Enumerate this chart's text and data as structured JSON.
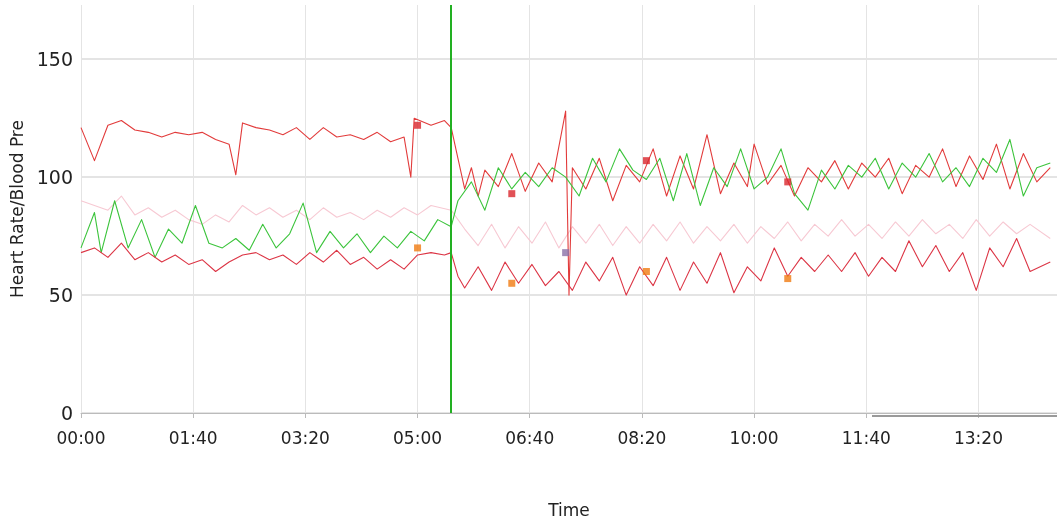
{
  "chart_data": {
    "type": "line",
    "xlabel": "Time",
    "ylabel": "Heart Rate/Blood Pre",
    "xlim": [
      0,
      14.5
    ],
    "ylim": [
      0,
      173
    ],
    "xticks": [
      {
        "value": 0,
        "label": "00:00"
      },
      {
        "value": 1.6667,
        "label": "01:40"
      },
      {
        "value": 3.3333,
        "label": "03:20"
      },
      {
        "value": 5,
        "label": "05:00"
      },
      {
        "value": 6.6667,
        "label": "06:40"
      },
      {
        "value": 8.3333,
        "label": "08:20"
      },
      {
        "value": 10,
        "label": "10:00"
      },
      {
        "value": 11.6667,
        "label": "11:40"
      },
      {
        "value": 13.3333,
        "label": "13:20"
      }
    ],
    "yticks": [
      0,
      50,
      100,
      150
    ],
    "grid": true,
    "marker": "none",
    "line_style": "solid",
    "ref_lines": [
      {
        "axis": "x",
        "value": 5.5,
        "label": null,
        "color": "#22b022"
      }
    ],
    "series": [
      {
        "color": "#f7c9d3",
        "x": [
          0,
          0.4,
          0.6,
          0.8,
          1.0,
          1.2,
          1.4,
          1.6,
          1.8,
          2.0,
          2.2,
          2.4,
          2.6,
          2.8,
          3.0,
          3.2,
          3.4,
          3.6,
          3.8,
          4.0,
          4.2,
          4.4,
          4.6,
          4.8,
          5.0,
          5.2,
          5.5,
          5.7,
          5.9,
          6.1,
          6.3,
          6.5,
          6.7,
          6.9,
          7.1,
          7.3,
          7.5,
          7.7,
          7.9,
          8.1,
          8.3,
          8.5,
          8.7,
          8.9,
          9.1,
          9.3,
          9.5,
          9.7,
          9.9,
          10.1,
          10.3,
          10.5,
          10.7,
          10.9,
          11.1,
          11.3,
          11.5,
          11.7,
          11.9,
          12.1,
          12.3,
          12.5,
          12.7,
          12.9,
          13.1,
          13.3,
          13.5,
          13.7,
          13.9,
          14.1,
          14.4
        ],
        "values": [
          90,
          86,
          92,
          84,
          87,
          83,
          86,
          82,
          80,
          84,
          81,
          88,
          84,
          87,
          83,
          86,
          82,
          87,
          83,
          85,
          82,
          86,
          83,
          87,
          84,
          88,
          86,
          78,
          71,
          80,
          70,
          79,
          72,
          81,
          70,
          79,
          72,
          80,
          71,
          79,
          72,
          80,
          73,
          81,
          72,
          79,
          73,
          80,
          72,
          79,
          74,
          81,
          73,
          80,
          75,
          82,
          75,
          80,
          74,
          81,
          75,
          82,
          76,
          80,
          74,
          82,
          75,
          81,
          76,
          80,
          74
        ]
      },
      {
        "color": "#e23b3b",
        "x": [
          0,
          0.2,
          0.4,
          0.6,
          0.8,
          1.0,
          1.2,
          1.4,
          1.6,
          1.8,
          2.0,
          2.2,
          2.3,
          2.4,
          2.6,
          2.8,
          3.0,
          3.2,
          3.4,
          3.6,
          3.8,
          4.0,
          4.2,
          4.4,
          4.6,
          4.8,
          4.9,
          4.95,
          5.2,
          5.4,
          5.5,
          5.6,
          5.7,
          5.8,
          5.9,
          6.0,
          6.2,
          6.4,
          6.6,
          6.8,
          7.0,
          7.2,
          7.25,
          7.3,
          7.5,
          7.7,
          7.9,
          8.1,
          8.3,
          8.5,
          8.7,
          8.9,
          9.1,
          9.3,
          9.5,
          9.7,
          9.9,
          10.0,
          10.2,
          10.4,
          10.6,
          10.8,
          11.0,
          11.2,
          11.4,
          11.6,
          11.8,
          12.0,
          12.2,
          12.4,
          12.6,
          12.8,
          13.0,
          13.2,
          13.4,
          13.6,
          13.8,
          14.0,
          14.2,
          14.4
        ],
        "values": [
          121,
          107,
          122,
          124,
          120,
          119,
          117,
          119,
          118,
          119,
          116,
          114,
          101,
          123,
          121,
          120,
          118,
          121,
          116,
          121,
          117,
          118,
          116,
          119,
          115,
          117,
          100,
          125,
          122,
          124,
          121,
          108,
          95,
          104,
          92,
          103,
          96,
          110,
          94,
          106,
          98,
          128,
          50,
          104,
          95,
          108,
          90,
          105,
          98,
          112,
          92,
          109,
          95,
          118,
          93,
          106,
          96,
          114,
          97,
          105,
          92,
          104,
          98,
          107,
          95,
          106,
          100,
          108,
          93,
          105,
          100,
          112,
          96,
          109,
          99,
          114,
          95,
          110,
          98,
          104
        ]
      },
      {
        "color": "#3cc43c",
        "x": [
          0,
          0.2,
          0.3,
          0.5,
          0.7,
          0.9,
          1.1,
          1.3,
          1.5,
          1.7,
          1.9,
          2.1,
          2.3,
          2.5,
          2.7,
          2.9,
          3.1,
          3.3,
          3.5,
          3.7,
          3.9,
          4.1,
          4.3,
          4.5,
          4.7,
          4.9,
          5.1,
          5.3,
          5.5,
          5.6,
          5.8,
          6.0,
          6.2,
          6.4,
          6.6,
          6.8,
          7.0,
          7.2,
          7.4,
          7.6,
          7.8,
          8.0,
          8.2,
          8.4,
          8.6,
          8.8,
          9.0,
          9.2,
          9.4,
          9.6,
          9.8,
          10.0,
          10.2,
          10.4,
          10.6,
          10.8,
          11.0,
          11.2,
          11.4,
          11.6,
          11.8,
          12.0,
          12.2,
          12.4,
          12.6,
          12.8,
          13.0,
          13.2,
          13.4,
          13.6,
          13.8,
          14.0,
          14.2,
          14.4
        ],
        "values": [
          70,
          85,
          68,
          90,
          70,
          82,
          66,
          78,
          72,
          88,
          72,
          70,
          74,
          69,
          80,
          70,
          76,
          89,
          68,
          77,
          70,
          76,
          68,
          75,
          70,
          77,
          73,
          82,
          79,
          90,
          98,
          86,
          104,
          95,
          102,
          96,
          104,
          100,
          92,
          108,
          98,
          112,
          103,
          99,
          108,
          90,
          110,
          88,
          104,
          96,
          112,
          95,
          100,
          112,
          93,
          86,
          103,
          95,
          105,
          100,
          108,
          95,
          106,
          100,
          110,
          98,
          104,
          96,
          108,
          102,
          116,
          92,
          104,
          106
        ]
      },
      {
        "color": "#dc3545",
        "x": [
          0,
          0.2,
          0.4,
          0.6,
          0.8,
          1.0,
          1.2,
          1.4,
          1.6,
          1.8,
          2.0,
          2.2,
          2.4,
          2.6,
          2.8,
          3.0,
          3.2,
          3.4,
          3.6,
          3.8,
          4.0,
          4.2,
          4.4,
          4.6,
          4.8,
          5.0,
          5.2,
          5.4,
          5.5,
          5.6,
          5.7,
          5.9,
          6.1,
          6.3,
          6.5,
          6.7,
          6.9,
          7.1,
          7.3,
          7.5,
          7.7,
          7.9,
          8.1,
          8.3,
          8.5,
          8.7,
          8.9,
          9.1,
          9.3,
          9.5,
          9.7,
          9.9,
          10.1,
          10.3,
          10.5,
          10.7,
          10.9,
          11.1,
          11.3,
          11.5,
          11.7,
          11.9,
          12.1,
          12.3,
          12.5,
          12.7,
          12.9,
          13.1,
          13.3,
          13.5,
          13.7,
          13.9,
          14.1,
          14.4
        ],
        "values": [
          68,
          70,
          66,
          72,
          65,
          68,
          64,
          67,
          63,
          65,
          60,
          64,
          67,
          68,
          65,
          67,
          63,
          68,
          64,
          69,
          63,
          66,
          61,
          65,
          61,
          67,
          68,
          67,
          68,
          58,
          53,
          62,
          52,
          64,
          55,
          63,
          54,
          60,
          52,
          64,
          56,
          66,
          50,
          62,
          54,
          66,
          52,
          64,
          55,
          68,
          51,
          62,
          56,
          70,
          58,
          66,
          60,
          67,
          60,
          68,
          58,
          66,
          60,
          73,
          62,
          71,
          60,
          68,
          52,
          70,
          62,
          74,
          60,
          64
        ]
      },
      {
        "type": "scatter",
        "marker": "square",
        "color": "#d9262c",
        "x": [
          5.0,
          6.4,
          8.4,
          10.5
        ],
        "values": [
          122,
          93,
          107,
          98
        ]
      },
      {
        "type": "scatter",
        "marker": "square",
        "color": "#f07b10",
        "x": [
          5.0,
          6.4,
          8.4,
          10.5
        ],
        "values": [
          70,
          55,
          60,
          57
        ]
      },
      {
        "type": "scatter",
        "marker": "square",
        "color": "#8a70a8",
        "x": [
          7.2
        ],
        "values": [
          68
        ]
      }
    ]
  }
}
